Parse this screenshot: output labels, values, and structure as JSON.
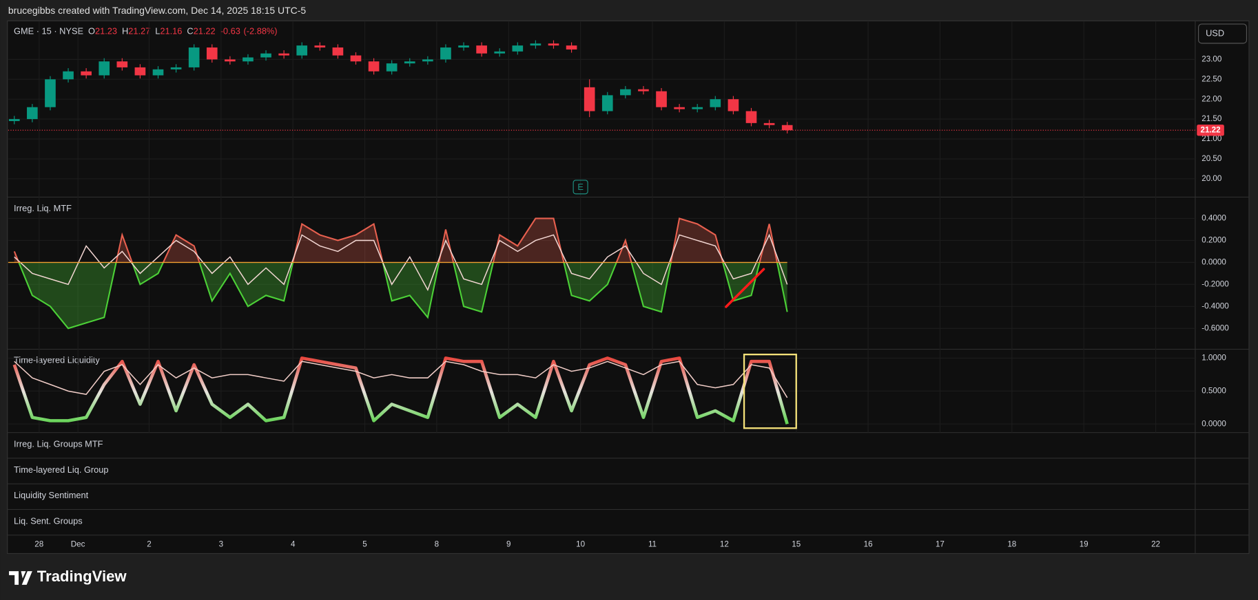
{
  "banner": "brucegibbs created with TradingView.com, Dec 14, 2025 18:15 UTC-5",
  "currency": "USD",
  "logo": "TradingView",
  "empty_panels": [
    "Irreg. Liq. Groups MTF",
    "Time-layered Liq. Group",
    "Liquidity Sentiment",
    "Liq. Sent. Groups"
  ],
  "chart_data": [
    {
      "type": "candlestick",
      "title": "GME · 15 · NYSE",
      "ohlc": [
        {
          "label": "O",
          "value": 21.23
        },
        {
          "label": "H",
          "value": 21.27
        },
        {
          "label": "L",
          "value": 21.16
        },
        {
          "label": "C",
          "value": 21.22
        }
      ],
      "change": -0.63,
      "change_label": "(-2.88%)",
      "x": [
        -1.875,
        -1.625,
        -1.375,
        -1.125,
        -0.875,
        -0.625,
        -0.375,
        -0.125,
        0.125,
        0.375,
        0.625,
        0.875,
        1.125,
        1.375,
        1.625,
        1.875,
        2.125,
        2.375,
        2.625,
        2.875,
        3.125,
        3.375,
        3.625,
        3.875,
        4.125,
        4.375,
        4.625,
        4.875,
        5.125,
        5.375,
        5.625,
        5.875,
        6.125,
        6.375,
        6.625,
        6.875,
        7.125,
        7.375,
        7.625,
        7.875,
        8.125,
        8.375,
        8.625,
        8.875
      ],
      "open": [
        21.45,
        21.5,
        21.8,
        22.5,
        22.7,
        22.6,
        22.95,
        22.8,
        22.6,
        22.75,
        22.8,
        23.3,
        23.0,
        22.95,
        23.05,
        23.15,
        23.1,
        23.35,
        23.3,
        23.1,
        22.95,
        22.7,
        22.9,
        22.95,
        23.0,
        23.3,
        23.35,
        23.15,
        23.2,
        23.35,
        23.4,
        23.35,
        22.3,
        21.7,
        22.1,
        22.25,
        22.2,
        21.8,
        21.75,
        21.8,
        22.0,
        21.7,
        21.4,
        21.35
      ],
      "high": [
        21.58,
        21.88,
        22.58,
        22.78,
        22.78,
        23.03,
        23.03,
        22.88,
        22.83,
        22.88,
        23.38,
        23.38,
        23.08,
        23.13,
        23.23,
        23.23,
        23.43,
        23.43,
        23.38,
        23.18,
        23.03,
        22.98,
        23.03,
        23.08,
        23.38,
        23.43,
        23.43,
        23.28,
        23.43,
        23.48,
        23.48,
        23.43,
        22.5,
        22.18,
        22.33,
        22.33,
        22.28,
        21.88,
        21.88,
        22.08,
        22.08,
        21.78,
        21.48,
        21.43
      ],
      "low": [
        21.37,
        21.42,
        21.72,
        22.42,
        22.52,
        22.52,
        22.72,
        22.52,
        22.52,
        22.67,
        22.72,
        22.92,
        22.87,
        22.87,
        22.97,
        23.02,
        23.02,
        23.22,
        23.02,
        22.87,
        22.62,
        22.62,
        22.82,
        22.87,
        22.92,
        23.22,
        23.07,
        23.07,
        23.12,
        23.27,
        23.27,
        23.17,
        21.55,
        21.62,
        22.02,
        22.12,
        21.72,
        21.67,
        21.67,
        21.72,
        21.62,
        21.32,
        21.27,
        21.14
      ],
      "close": [
        21.5,
        21.8,
        22.5,
        22.7,
        22.6,
        22.95,
        22.8,
        22.6,
        22.75,
        22.8,
        23.3,
        23.0,
        22.95,
        23.05,
        23.15,
        23.1,
        23.35,
        23.3,
        23.1,
        22.95,
        22.7,
        22.9,
        22.95,
        23.0,
        23.3,
        23.35,
        23.15,
        23.2,
        23.35,
        23.4,
        23.35,
        23.25,
        21.7,
        22.1,
        22.25,
        22.2,
        21.8,
        21.75,
        21.8,
        22.0,
        21.7,
        21.4,
        21.35,
        21.22
      ],
      "up_color": "#089981",
      "down_color": "#f23645",
      "last_price": 21.22,
      "earnings": {
        "x": 6,
        "label": "E",
        "color": "#1e8f80"
      },
      "xlim": [
        -1.96,
        14.55
      ],
      "xticks": [
        {
          "value": -1.53,
          "label": "28"
        },
        {
          "value": -0.99,
          "label": "Dec"
        },
        {
          "value": 0,
          "label": "2"
        },
        {
          "value": 1,
          "label": "3"
        },
        {
          "value": 2,
          "label": "4"
        },
        {
          "value": 3,
          "label": "5"
        },
        {
          "value": 4,
          "label": "8"
        },
        {
          "value": 5,
          "label": "9"
        },
        {
          "value": 6,
          "label": "10"
        },
        {
          "value": 7,
          "label": "11"
        },
        {
          "value": 8,
          "label": "12"
        },
        {
          "value": 9,
          "label": "15"
        },
        {
          "value": 10,
          "label": "16"
        },
        {
          "value": 11,
          "label": "17"
        },
        {
          "value": 12,
          "label": "18"
        },
        {
          "value": 13,
          "label": "19"
        },
        {
          "value": 14,
          "label": "22"
        }
      ],
      "ylim": [
        19.54,
        23.95
      ],
      "yticks": [
        {
          "value": 20,
          "label": "20.00"
        },
        {
          "value": 20.5,
          "label": "20.50"
        },
        {
          "value": 21,
          "label": "21.00"
        },
        {
          "value": 21.5,
          "label": "21.50"
        },
        {
          "value": 22,
          "label": "22.00"
        },
        {
          "value": 22.5,
          "label": "22.50"
        },
        {
          "value": 23,
          "label": "23.00"
        }
      ],
      "grid": true
    },
    {
      "type": "line",
      "title": "Irreg. Liq. MTF",
      "x": [
        -1.875,
        -1.625,
        -1.375,
        -1.125,
        -0.875,
        -0.625,
        -0.375,
        -0.125,
        0.125,
        0.375,
        0.625,
        0.875,
        1.125,
        1.375,
        1.625,
        1.875,
        2.125,
        2.375,
        2.625,
        2.875,
        3.125,
        3.375,
        3.625,
        3.875,
        4.125,
        4.375,
        4.625,
        4.875,
        5.125,
        5.375,
        5.625,
        5.875,
        6.125,
        6.375,
        6.625,
        6.875,
        7.125,
        7.375,
        7.625,
        7.875,
        8.125,
        8.375,
        8.625,
        8.875
      ],
      "series": [
        {
          "color": "#e8604f",
          "negative_color": "#4cd137",
          "fill": true,
          "values": [
            0.1,
            -0.3,
            -0.4,
            -0.6,
            -0.55,
            -0.5,
            0.25,
            -0.2,
            -0.1,
            0.25,
            0.15,
            -0.35,
            -0.1,
            -0.4,
            -0.3,
            -0.35,
            0.35,
            0.25,
            0.2,
            0.25,
            0.35,
            -0.35,
            -0.3,
            -0.5,
            0.3,
            -0.4,
            -0.45,
            0.25,
            0.15,
            0.4,
            0.4,
            -0.3,
            -0.35,
            -0.2,
            0.2,
            -0.4,
            -0.45,
            0.4,
            0.35,
            0.25,
            -0.35,
            -0.3,
            0.35,
            -0.45
          ]
        },
        {
          "color": "#f2d6d2",
          "values": [
            0.05,
            -0.1,
            -0.15,
            -0.2,
            0.15,
            -0.05,
            0.1,
            -0.1,
            0.05,
            0.2,
            0.1,
            -0.1,
            0.05,
            -0.2,
            -0.05,
            -0.2,
            0.25,
            0.15,
            0.1,
            0.2,
            0.2,
            -0.2,
            0.05,
            -0.25,
            0.2,
            -0.15,
            -0.2,
            0.2,
            0.1,
            0.2,
            0.25,
            -0.1,
            -0.15,
            0.05,
            0.15,
            -0.1,
            -0.2,
            0.25,
            0.2,
            0.15,
            -0.15,
            -0.1,
            0.25,
            -0.2
          ]
        }
      ],
      "baseline": {
        "value": 0,
        "color": "#f0a030"
      },
      "ylim": [
        -0.79,
        0.58
      ],
      "yticks": [
        {
          "value": 0.4,
          "label": "0.4000"
        },
        {
          "value": 0.2,
          "label": "0.2000"
        },
        {
          "value": 0,
          "label": "0.0000"
        },
        {
          "value": -0.2,
          "label": "-0.2000"
        },
        {
          "value": -0.4,
          "label": "-0.4000"
        },
        {
          "value": -0.6,
          "label": "-0.6000"
        }
      ],
      "grid": true
    },
    {
      "type": "line",
      "title": "Time-layered Liquidity",
      "x": [
        -1.875,
        -1.625,
        -1.375,
        -1.125,
        -0.875,
        -0.625,
        -0.375,
        -0.125,
        0.125,
        0.375,
        0.625,
        0.875,
        1.125,
        1.375,
        1.625,
        1.875,
        2.125,
        2.375,
        2.625,
        2.875,
        3.125,
        3.375,
        3.625,
        3.875,
        4.125,
        4.375,
        4.625,
        4.875,
        5.125,
        5.375,
        5.625,
        5.875,
        6.125,
        6.375,
        6.625,
        6.875,
        7.125,
        7.375,
        7.625,
        7.875,
        8.125,
        8.375,
        8.625,
        8.875
      ],
      "gradient_colors": [
        "#3ccf2a",
        "#e6e2dc",
        "#e8281e"
      ],
      "series": [
        {
          "gradient": true,
          "values": [
            0.9,
            0.1,
            0.05,
            0.05,
            0.1,
            0.6,
            0.95,
            0.3,
            0.95,
            0.2,
            0.9,
            0.3,
            0.1,
            0.3,
            0.05,
            0.1,
            1,
            0.95,
            0.9,
            0.85,
            0.05,
            0.3,
            0.2,
            0.1,
            1,
            0.95,
            0.95,
            0.1,
            0.3,
            0.1,
            0.95,
            0.2,
            0.9,
            1,
            0.9,
            0.1,
            0.95,
            1,
            0.1,
            0.2,
            0.05,
            0.95,
            0.95,
            0
          ]
        },
        {
          "color": "#f3cfc9",
          "values": [
            0.95,
            0.7,
            0.6,
            0.5,
            0.45,
            0.8,
            0.9,
            0.6,
            0.9,
            0.7,
            0.85,
            0.7,
            0.75,
            0.75,
            0.7,
            0.65,
            0.95,
            0.9,
            0.85,
            0.8,
            0.7,
            0.75,
            0.7,
            0.7,
            0.95,
            0.9,
            0.8,
            0.75,
            0.75,
            0.7,
            0.9,
            0.8,
            0.85,
            0.95,
            0.85,
            0.75,
            0.9,
            0.95,
            0.6,
            0.55,
            0.6,
            0.9,
            0.85,
            0.4
          ]
        }
      ],
      "ylim": [
        -0.13,
        1.11
      ],
      "yticks": [
        {
          "value": 1,
          "label": "1.0000"
        },
        {
          "value": 0.5,
          "label": "0.5000"
        },
        {
          "value": 0,
          "label": "0.0000"
        }
      ],
      "grid": true
    }
  ]
}
